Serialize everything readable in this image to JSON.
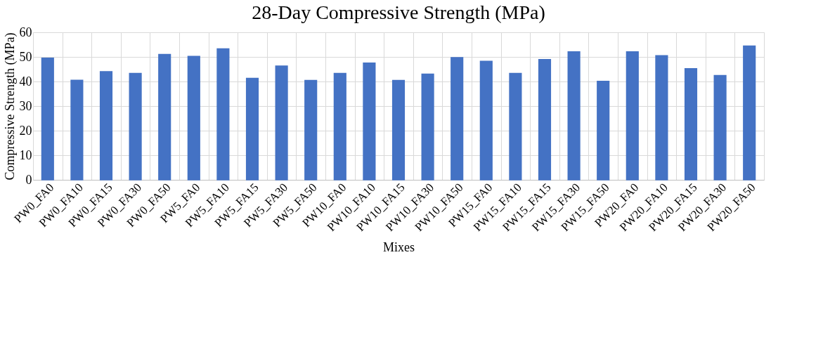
{
  "chart_data": {
    "type": "bar",
    "title": "28-Day Compressive Strength (MPa)",
    "xlabel": "Mixes",
    "ylabel": "Compressive Strength (MPa)",
    "categories": [
      "PW0_FA0",
      "PW0_FA10",
      "PW0_FA15",
      "PW0_FA30",
      "PW0_FA50",
      "PW5_FA0",
      "PW5_FA10",
      "PW5_FA15",
      "PW5_FA30",
      "PW5_FA50",
      "PW10_FA0",
      "PW10_FA10",
      "PW10_FA15",
      "PW10_FA30",
      "PW10_FA50",
      "PW15_FA0",
      "PW15_FA10",
      "PW15_FA15",
      "PW15_FA30",
      "PW15_FA50",
      "PW20_FA0",
      "PW20_FA10",
      "PW20_FA15",
      "PW20_FA30",
      "PW20_FA50"
    ],
    "values": [
      49.5,
      40.5,
      44,
      43.3,
      51,
      50.2,
      53.3,
      41.3,
      46.3,
      40.4,
      43.3,
      47.5,
      40.4,
      43,
      49.7,
      48.2,
      43.3,
      48.9,
      52.1,
      40.1,
      52.1,
      50.5,
      45.2,
      42.4,
      54.4
    ],
    "color": "#4472c4",
    "ylim": [
      0,
      60
    ],
    "yticks": [
      0,
      10,
      20,
      30,
      40,
      50,
      60
    ],
    "grid": true
  }
}
